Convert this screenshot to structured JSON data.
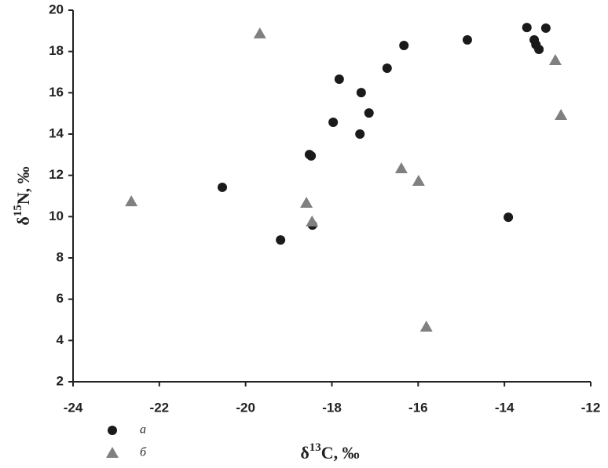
{
  "chart_data": {
    "type": "scatter",
    "x_label": {
      "main": "δ",
      "sup": "13",
      "rest": "C, ‰"
    },
    "y_label": {
      "main": "δ",
      "sup": "15",
      "rest": "N, ‰"
    },
    "xlim": [
      -24,
      -12
    ],
    "xticks": [
      -24,
      -22,
      -20,
      -18,
      -16,
      -14,
      -12
    ],
    "ylim": [
      2,
      20
    ],
    "yticks": [
      2,
      4,
      6,
      8,
      10,
      12,
      14,
      16,
      18,
      20
    ],
    "grid": false,
    "series": [
      {
        "name": "а",
        "color": "#1a1a1a",
        "marker": "circle",
        "x": [
          -14.86,
          -13.48,
          -13.04,
          -13.31,
          -13.27,
          -13.2,
          -16.33,
          -16.72,
          -17.83,
          -17.32,
          -17.14,
          -17.97,
          -17.35,
          -18.52,
          -18.48,
          -20.54,
          -19.19,
          -18.45,
          -13.91
        ],
        "y": [
          18.56,
          19.16,
          19.13,
          18.56,
          18.33,
          18.1,
          18.29,
          17.19,
          16.66,
          16.01,
          15.02,
          14.57,
          14.0,
          13.01,
          12.94,
          11.42,
          8.87,
          9.59,
          9.97
        ]
      },
      {
        "name": "б",
        "color": "#808080",
        "marker": "triangle",
        "x": [
          -19.67,
          -22.65,
          -18.59,
          -18.46,
          -16.39,
          -15.99,
          -15.81,
          -12.82,
          -12.69
        ],
        "y": [
          18.86,
          10.73,
          10.66,
          9.75,
          12.33,
          11.72,
          4.66,
          17.57,
          14.91
        ]
      }
    ]
  }
}
